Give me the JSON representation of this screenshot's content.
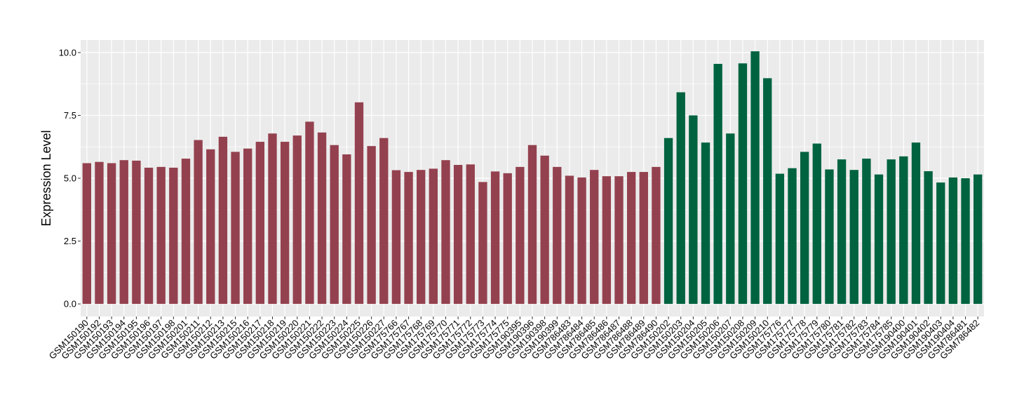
{
  "chart_data": {
    "type": "bar",
    "title": "",
    "xlabel": "",
    "ylabel": "Expression Level",
    "ylim": [
      -0.5,
      10.5
    ],
    "yticks": [
      0.0,
      2.5,
      5.0,
      7.5,
      10.0
    ],
    "ytick_labels": [
      "0.0",
      "2.5",
      "5.0",
      "7.5",
      "10.0"
    ],
    "grid": true,
    "legend": "none",
    "colors": {
      "group_a": "#94414f",
      "group_b": "#006340",
      "panel_background": "#ebebeb",
      "gridline": "#ffffff"
    },
    "categories": [
      "GSM150190",
      "GSM150192",
      "GSM150193",
      "GSM150194",
      "GSM150195",
      "GSM150196",
      "GSM150197",
      "GSM150198",
      "GSM150201",
      "GSM150211",
      "GSM150212",
      "GSM150213",
      "GSM150215",
      "GSM150216",
      "GSM150217",
      "GSM150218",
      "GSM150219",
      "GSM150220",
      "GSM150221",
      "GSM150222",
      "GSM150223",
      "GSM150224",
      "GSM150225",
      "GSM150226",
      "GSM150227",
      "GSM175766",
      "GSM175767",
      "GSM175768",
      "GSM175769",
      "GSM175770",
      "GSM175771",
      "GSM175772",
      "GSM175773",
      "GSM175774",
      "GSM175775",
      "GSM190395",
      "GSM190396",
      "GSM190398",
      "GSM190399",
      "GSM786483",
      "GSM786484",
      "GSM786485",
      "GSM786486",
      "GSM786487",
      "GSM786488",
      "GSM786489",
      "GSM786490",
      "GSM150202",
      "GSM150203",
      "GSM150204",
      "GSM150205",
      "GSM150206",
      "GSM150207",
      "GSM150208",
      "GSM150209",
      "GSM150210",
      "GSM175776",
      "GSM175777",
      "GSM175778",
      "GSM175779",
      "GSM175780",
      "GSM175781",
      "GSM175782",
      "GSM175783",
      "GSM175784",
      "GSM175785",
      "GSM190400",
      "GSM190401",
      "GSM190402",
      "GSM190403",
      "GSM190404",
      "GSM786481",
      "GSM786482"
    ],
    "values": [
      5.6,
      5.65,
      5.6,
      5.72,
      5.7,
      5.42,
      5.45,
      5.42,
      5.78,
      6.52,
      6.15,
      6.65,
      6.05,
      6.18,
      6.45,
      6.78,
      6.45,
      6.7,
      7.25,
      6.82,
      6.32,
      5.95,
      8.02,
      6.28,
      6.6,
      5.32,
      5.25,
      5.33,
      5.38,
      5.72,
      5.53,
      5.55,
      4.85,
      5.27,
      5.2,
      5.45,
      6.32,
      5.9,
      5.45,
      5.1,
      5.03,
      5.33,
      5.08,
      5.08,
      5.25,
      5.25,
      5.45,
      6.6,
      8.42,
      7.5,
      6.42,
      9.55,
      6.78,
      9.57,
      10.05,
      8.98,
      5.18,
      5.4,
      6.05,
      6.38,
      5.35,
      5.75,
      5.33,
      5.78,
      5.15,
      5.75,
      5.87,
      6.42,
      5.28,
      4.83,
      5.03,
      5.0,
      5.15
    ],
    "groups": [
      "a",
      "a",
      "a",
      "a",
      "a",
      "a",
      "a",
      "a",
      "a",
      "a",
      "a",
      "a",
      "a",
      "a",
      "a",
      "a",
      "a",
      "a",
      "a",
      "a",
      "a",
      "a",
      "a",
      "a",
      "a",
      "a",
      "a",
      "a",
      "a",
      "a",
      "a",
      "a",
      "a",
      "a",
      "a",
      "a",
      "a",
      "a",
      "a",
      "a",
      "a",
      "a",
      "a",
      "a",
      "a",
      "a",
      "a",
      "b",
      "b",
      "b",
      "b",
      "b",
      "b",
      "b",
      "b",
      "b",
      "b",
      "b",
      "b",
      "b",
      "b",
      "b",
      "b",
      "b",
      "b",
      "b",
      "b",
      "b",
      "b",
      "b",
      "b",
      "b",
      "b"
    ]
  }
}
